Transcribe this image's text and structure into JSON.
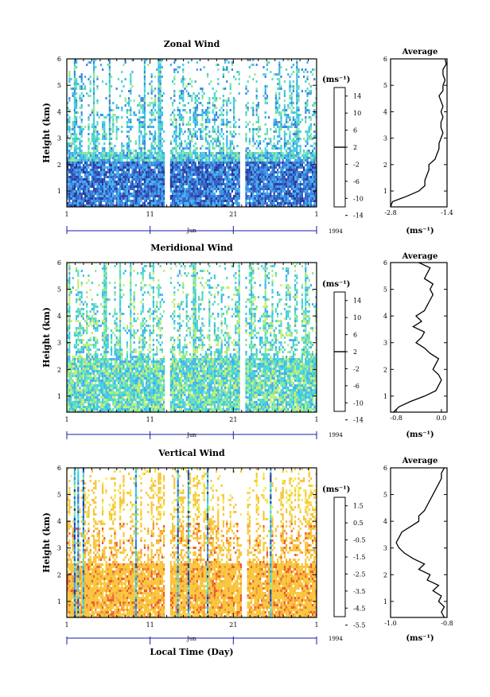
{
  "chart_data": [
    {
      "type": "heatmap",
      "title": "Zonal Wind",
      "ylabel": "Height (km)",
      "yticks": [
        "1",
        "2",
        "3",
        "4",
        "5",
        "6"
      ],
      "ylim": [
        0.4,
        6.0
      ],
      "xticks": [
        "1",
        "11",
        "21",
        "1"
      ],
      "xlim": [
        1,
        31
      ],
      "month_label": "Jun",
      "year_label": "1994",
      "colorbar": {
        "unit": "(ms⁻¹)",
        "tick_labels": [
          "14",
          "10",
          "6",
          "2",
          "-2",
          "-6",
          "-10",
          "-14"
        ],
        "range": [
          -16,
          16
        ],
        "zero_line": true
      },
      "profile": {
        "title": "Average",
        "xlabel": "(ms⁻¹)",
        "xtick_labels": [
          "-2.8",
          "-1.4"
        ],
        "xlim": [
          -2.8,
          -1.4
        ],
        "heights": [
          0.4,
          0.6,
          0.8,
          1.0,
          1.2,
          1.4,
          1.6,
          1.8,
          2.0,
          2.2,
          2.4,
          2.6,
          2.8,
          3.0,
          3.2,
          3.4,
          3.6,
          3.8,
          4.0,
          4.2,
          4.4,
          4.6,
          4.8,
          5.0,
          5.2,
          5.4,
          5.6,
          5.8,
          6.0
        ],
        "values": [
          -2.8,
          -2.75,
          -2.4,
          -2.1,
          -1.95,
          -1.95,
          -1.9,
          -1.85,
          -1.85,
          -1.7,
          -1.65,
          -1.6,
          -1.6,
          -1.55,
          -1.5,
          -1.55,
          -1.55,
          -1.5,
          -1.55,
          -1.5,
          -1.55,
          -1.6,
          -1.5,
          -1.5,
          -1.45,
          -1.5,
          -1.5,
          -1.42,
          -1.45
        ]
      }
    },
    {
      "type": "heatmap",
      "title": "Meridional Wind",
      "ylabel": "Height (km)",
      "yticks": [
        "1",
        "2",
        "3",
        "4",
        "5",
        "6"
      ],
      "ylim": [
        0.4,
        6.0
      ],
      "xticks": [
        "1",
        "11",
        "21",
        "1"
      ],
      "xlim": [
        1,
        31
      ],
      "month_label": "Jun",
      "year_label": "1994",
      "colorbar": {
        "unit": "(ms⁻¹)",
        "tick_labels": [
          "14",
          "10",
          "6",
          "2",
          "-2",
          "-6",
          "-10",
          "-14"
        ],
        "range": [
          -16,
          16
        ],
        "zero_line": true
      },
      "profile": {
        "title": "Average",
        "xlabel": "(ms⁻¹)",
        "xtick_labels": [
          "-0.8",
          "0.0"
        ],
        "xlim": [
          -0.9,
          0.1
        ],
        "heights": [
          0.4,
          0.6,
          0.8,
          1.0,
          1.2,
          1.4,
          1.6,
          1.8,
          2.0,
          2.2,
          2.4,
          2.6,
          2.8,
          3.0,
          3.2,
          3.4,
          3.6,
          3.8,
          4.0,
          4.2,
          4.4,
          4.6,
          4.8,
          5.0,
          5.2,
          5.4,
          5.6,
          5.8,
          6.0
        ],
        "values": [
          -0.85,
          -0.75,
          -0.55,
          -0.3,
          -0.1,
          -0.05,
          0.0,
          -0.05,
          -0.15,
          -0.1,
          -0.05,
          -0.2,
          -0.3,
          -0.45,
          -0.35,
          -0.3,
          -0.5,
          -0.35,
          -0.45,
          -0.3,
          -0.25,
          -0.2,
          -0.15,
          -0.2,
          -0.15,
          -0.3,
          -0.25,
          -0.2,
          -0.4
        ]
      }
    },
    {
      "type": "heatmap",
      "title": "Vertical Wind",
      "ylabel": "Height (km)",
      "yticks": [
        "1",
        "2",
        "3",
        "4",
        "5",
        "6"
      ],
      "ylim": [
        0.4,
        6.0
      ],
      "xticks": [
        "1",
        "11",
        "21",
        "1"
      ],
      "xlim": [
        1,
        31
      ],
      "month_label": "Jun",
      "year_label": "1994",
      "xlabel": "Local Time (Day)",
      "colorbar": {
        "unit": "(ms⁻¹)",
        "tick_labels": [
          "1.5",
          "0.5",
          "-0.5",
          "-1.5",
          "-2.5",
          "-3.5",
          "-4.5",
          "-5.5"
        ],
        "range": [
          -6,
          2
        ],
        "zero_line": false
      },
      "profile": {
        "title": "Average",
        "xlabel": "(ms⁻¹)",
        "xtick_labels": [
          "-1.0",
          "-0.8"
        ],
        "xlim": [
          -1.0,
          -0.8
        ],
        "heights": [
          0.4,
          0.6,
          0.8,
          1.0,
          1.2,
          1.4,
          1.6,
          1.8,
          2.0,
          2.2,
          2.4,
          2.6,
          2.8,
          3.0,
          3.2,
          3.4,
          3.6,
          3.8,
          4.0,
          4.2,
          4.4,
          4.6,
          4.8,
          5.0,
          5.2,
          5.4,
          5.6,
          5.8,
          6.0
        ],
        "values": [
          -0.81,
          -0.82,
          -0.81,
          -0.83,
          -0.82,
          -0.85,
          -0.83,
          -0.87,
          -0.86,
          -0.9,
          -0.88,
          -0.92,
          -0.95,
          -0.97,
          -0.98,
          -0.97,
          -0.96,
          -0.93,
          -0.9,
          -0.9,
          -0.88,
          -0.87,
          -0.86,
          -0.85,
          -0.84,
          -0.83,
          -0.82,
          -0.82,
          -0.81
        ]
      }
    }
  ],
  "colors": {
    "frame": "#000000",
    "palette_wind": [
      "#1e1e6e",
      "#2a3a9e",
      "#2f5fc8",
      "#3a86e0",
      "#3fb0ee",
      "#3fcde8",
      "#56dcc0",
      "#8ee89a",
      "#c6ef6e",
      "#f3ea4a",
      "#f8c53a",
      "#f59432",
      "#ef5a30",
      "#d8262a"
    ],
    "palette_vertical": [
      "#1e1e6e",
      "#2a3a9e",
      "#2f5fc8",
      "#3a86e0",
      "#3fb0ee",
      "#3fcde8",
      "#56dcc0",
      "#8ee89a",
      "#c6ef6e",
      "#f3ea4a",
      "#f8c53a",
      "#f59432",
      "#ef5a30",
      "#d8262a"
    ]
  }
}
